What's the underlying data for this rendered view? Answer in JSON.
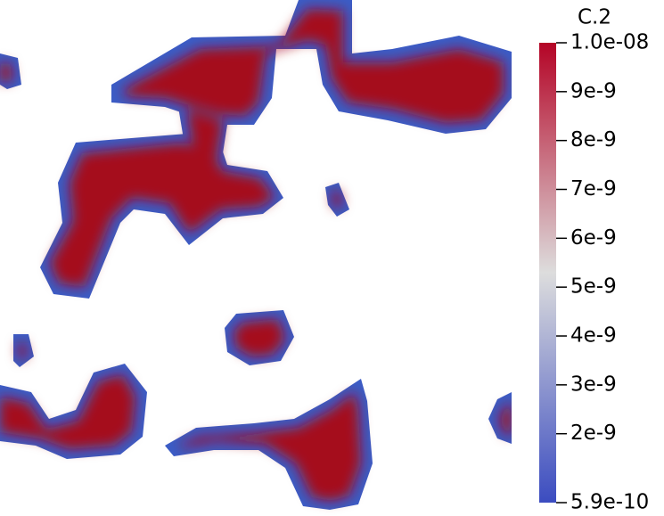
{
  "chart_data": {
    "type": "heatmap",
    "field_name": "C.2",
    "colormap": "coolwarm",
    "colors": {
      "low": "#3b4cc0",
      "mid": "#dddddd",
      "high": "#b40426",
      "saturated": "#a50c1f",
      "background": "#ffffff"
    },
    "value_range": [
      5.9e-10,
      1e-08
    ],
    "colorbar": {
      "title": "C.2",
      "ticks": [
        {
          "value": 1e-08,
          "label": "1.0e-08"
        },
        {
          "value": 9e-09,
          "label": "9e-9"
        },
        {
          "value": 8e-09,
          "label": "8e-9"
        },
        {
          "value": 7e-09,
          "label": "7e-9"
        },
        {
          "value": 6e-09,
          "label": "6e-9"
        },
        {
          "value": 5e-09,
          "label": "5e-9"
        },
        {
          "value": 4e-09,
          "label": "4e-9"
        },
        {
          "value": 3e-09,
          "label": "3e-9"
        },
        {
          "value": 2e-09,
          "label": "2e-9"
        },
        {
          "value": 5.9e-10,
          "label": "5.9e-10"
        }
      ]
    }
  }
}
